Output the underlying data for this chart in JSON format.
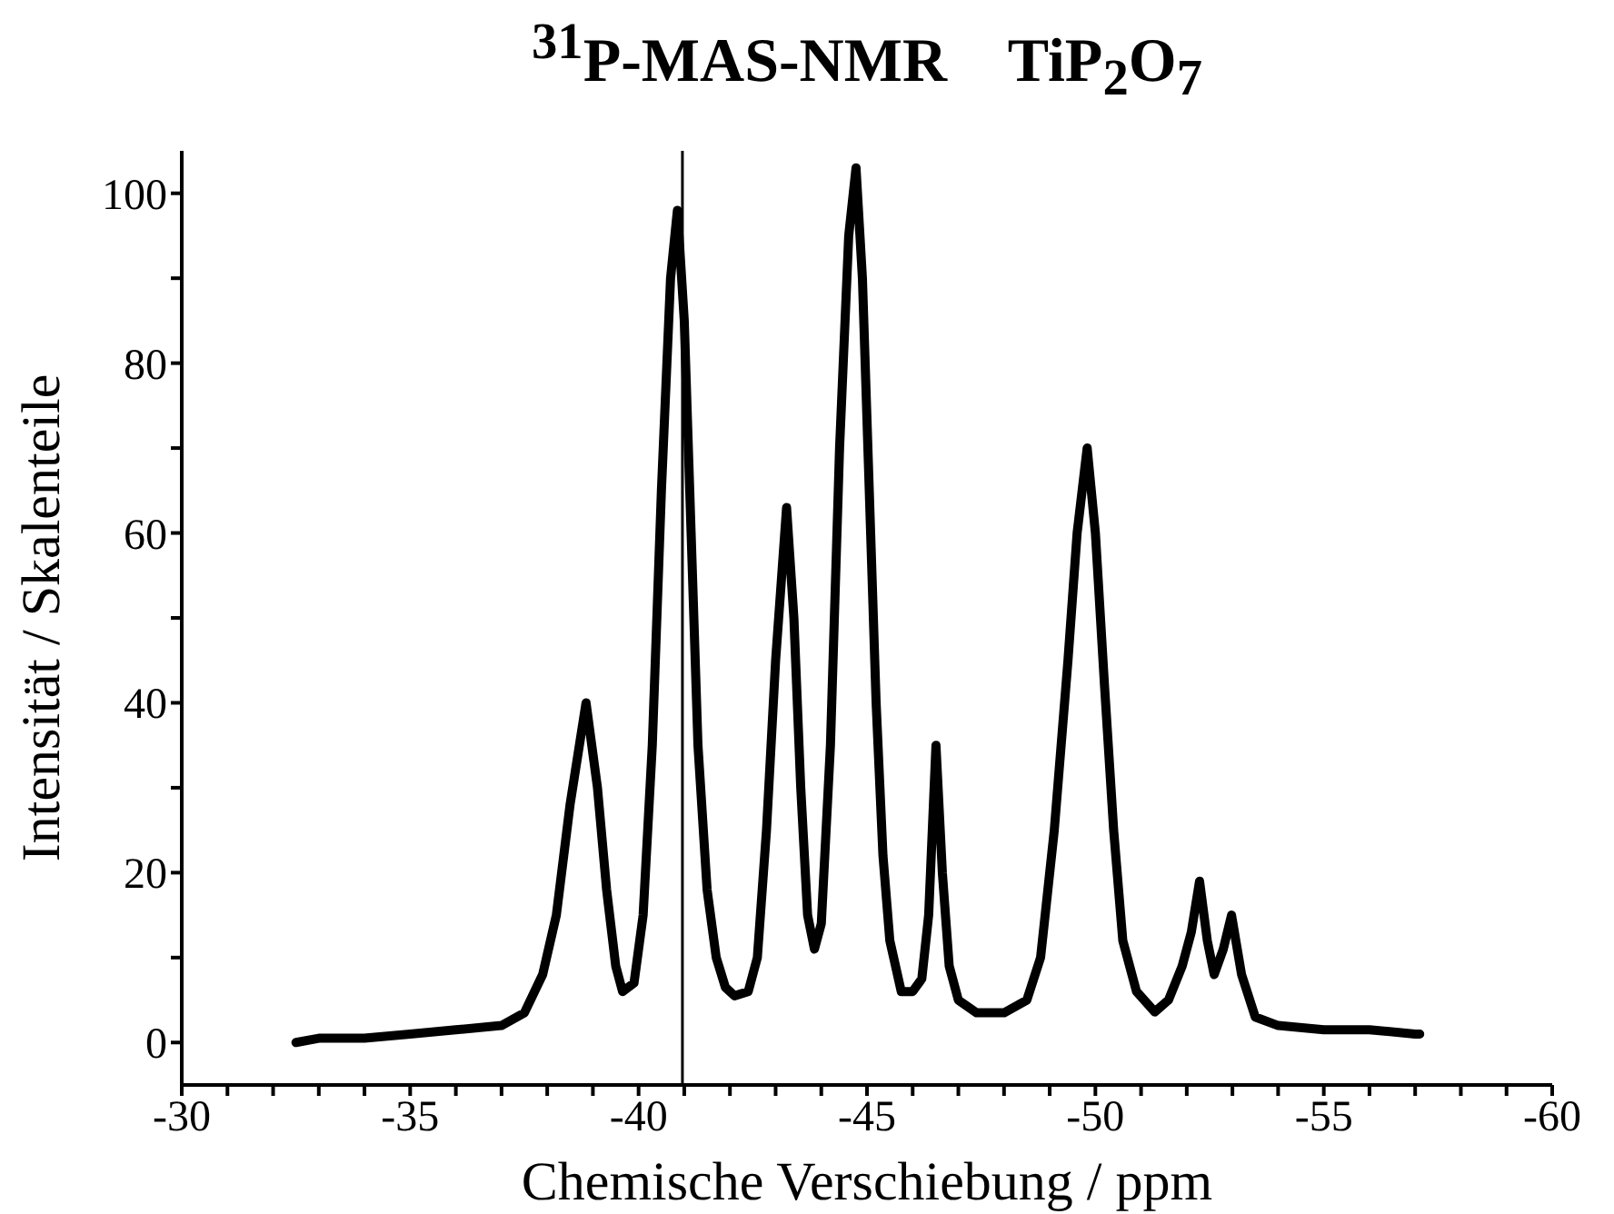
{
  "chart_data": {
    "type": "line",
    "title": "$^{31}$P-MAS-NMR    TiP$_{2}$O$_{7}$",
    "xlabel": "Chemische Verschiebung  /  ppm",
    "ylabel": "Intensität / Skalenteile",
    "x": [
      -32.5,
      -33,
      -34,
      -35,
      -36,
      -37,
      -37.5,
      -37.9,
      -38.2,
      -38.5,
      -38.85,
      -39.1,
      -39.3,
      -39.5,
      -39.65,
      -39.9,
      -40.1,
      -40.3,
      -40.5,
      -40.7,
      -40.85,
      -41.0,
      -41.15,
      -41.3,
      -41.5,
      -41.7,
      -41.9,
      -42.1,
      -42.4,
      -42.6,
      -42.8,
      -43.0,
      -43.24,
      -43.4,
      -43.55,
      -43.7,
      -43.85,
      -44.0,
      -44.2,
      -44.4,
      -44.6,
      -44.76,
      -44.9,
      -45.05,
      -45.2,
      -45.35,
      -45.5,
      -45.75,
      -46.0,
      -46.2,
      -46.35,
      -46.51,
      -46.65,
      -46.8,
      -47.0,
      -47.4,
      -48.0,
      -48.5,
      -48.8,
      -49.1,
      -49.4,
      -49.6,
      -49.82,
      -50.0,
      -50.2,
      -50.4,
      -50.6,
      -50.9,
      -51.3,
      -51.6,
      -51.9,
      -52.1,
      -52.28,
      -52.45,
      -52.6,
      -52.8,
      -52.98,
      -53.2,
      -53.5,
      -54,
      -55,
      -56,
      -57,
      -57.1
    ],
    "series": [
      {
        "color": "#000000",
        "values": [
          0,
          0.5,
          0.5,
          1,
          1.5,
          2,
          3.5,
          8,
          15,
          28,
          40,
          30,
          18,
          9,
          6,
          7,
          15,
          35,
          65,
          90,
          98,
          85,
          60,
          35,
          18,
          10,
          6.5,
          5.5,
          6,
          10,
          25,
          45,
          63,
          50,
          30,
          15,
          11,
          14,
          35,
          70,
          95,
          103,
          90,
          65,
          40,
          22,
          12,
          6,
          6,
          7.5,
          15,
          35,
          20,
          9,
          5,
          3.5,
          3.5,
          5,
          10,
          25,
          45,
          60,
          70,
          60,
          42,
          25,
          12,
          6,
          3.6,
          5,
          9,
          13,
          19,
          12,
          8,
          11,
          15,
          8,
          3,
          2,
          1.5,
          1.5,
          1,
          1
        ]
      }
    ],
    "xlim": [
      -30,
      -60
    ],
    "xticks": [
      -30,
      {
        "value": -31,
        "label": null
      },
      {
        "value": -32,
        "label": null
      },
      {
        "value": -33,
        "label": null
      },
      {
        "value": -34,
        "label": null
      },
      -35,
      {
        "value": -36,
        "label": null
      },
      {
        "value": -37,
        "label": null
      },
      {
        "value": -38,
        "label": null
      },
      {
        "value": -39,
        "label": null
      },
      -40,
      {
        "value": -41,
        "label": null
      },
      {
        "value": -42,
        "label": null
      },
      {
        "value": -43,
        "label": null
      },
      {
        "value": -44,
        "label": null
      },
      -45,
      {
        "value": -46,
        "label": null
      },
      {
        "value": -47,
        "label": null
      },
      {
        "value": -48,
        "label": null
      },
      {
        "value": -49,
        "label": null
      },
      -50,
      {
        "value": -51,
        "label": null
      },
      {
        "value": -52,
        "label": null
      },
      {
        "value": -53,
        "label": null
      },
      {
        "value": -54,
        "label": null
      },
      -55,
      {
        "value": -56,
        "label": null
      },
      {
        "value": -57,
        "label": null
      },
      {
        "value": -58,
        "label": null
      },
      {
        "value": -59,
        "label": null
      },
      -60
    ],
    "ylim": [
      -5,
      105
    ],
    "yticks": [
      0,
      {
        "value": 10,
        "label": null
      },
      20,
      {
        "value": 30,
        "label": null
      },
      40,
      {
        "value": 50,
        "label": null
      },
      60,
      {
        "value": 70,
        "label": null
      },
      80,
      {
        "value": 90,
        "label": null
      },
      100
    ],
    "ref_lines": [
      {
        "axis": "x",
        "value": -40.96,
        "color": "#000000"
      }
    ],
    "marker": "none",
    "line_style": "solid"
  }
}
